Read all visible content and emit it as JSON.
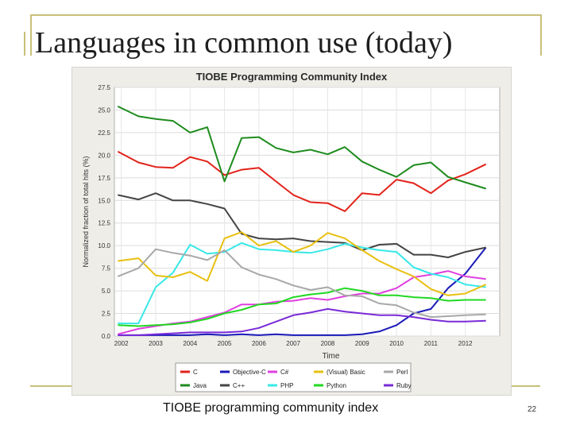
{
  "slide": {
    "title": "Languages in common use (today)",
    "caption": "TIOBE programming community index",
    "page_number": "22"
  },
  "chart_data": {
    "type": "line",
    "title": "TIOBE Programming Community Index",
    "xlabel": "Time",
    "ylabel": "Normalized fraction of total hits (%)",
    "xlim": [
      2001.8,
      2013.0
    ],
    "ylim": [
      0,
      27.5
    ],
    "yticks": [
      "0.0",
      "2.5",
      "5.0",
      "7.5",
      "10.0",
      "12.5",
      "15.0",
      "17.5",
      "20.0",
      "22.5",
      "25.0",
      "27.5"
    ],
    "xticks": [
      "2002",
      "2003",
      "2004",
      "2005",
      "2006",
      "2007",
      "2008",
      "2009",
      "2010",
      "2011",
      "2012"
    ],
    "grid": true,
    "legend_position": "bottom",
    "x": [
      2001.9,
      2002.5,
      2003.0,
      2003.5,
      2004.0,
      2004.5,
      2005.0,
      2005.5,
      2006.0,
      2006.5,
      2007.0,
      2007.5,
      2008.0,
      2008.5,
      2009.0,
      2009.5,
      2010.0,
      2010.5,
      2011.0,
      2011.5,
      2012.0,
      2012.6
    ],
    "series": [
      {
        "name": "C",
        "color": "#e2231a",
        "values": [
          20.4,
          19.2,
          18.7,
          18.6,
          19.8,
          19.3,
          17.8,
          18.4,
          18.6,
          17.1,
          15.6,
          14.8,
          14.7,
          13.8,
          15.8,
          15.6,
          17.3,
          16.9,
          15.8,
          17.2,
          17.9,
          19.0
        ]
      },
      {
        "name": "Java",
        "color": "#1e8c1e",
        "values": [
          25.4,
          24.3,
          24.0,
          23.8,
          22.5,
          23.1,
          17.1,
          21.9,
          22.0,
          20.8,
          20.3,
          20.6,
          20.1,
          20.9,
          19.3,
          18.4,
          17.6,
          18.9,
          19.2,
          17.6,
          17.0,
          16.3
        ]
      },
      {
        "name": "Objective-C",
        "color": "#1a1ab8",
        "values": [
          0.1,
          0.1,
          0.1,
          0.1,
          0.1,
          0.2,
          0.1,
          0.2,
          0.1,
          0.2,
          0.1,
          0.1,
          0.1,
          0.1,
          0.2,
          0.5,
          1.2,
          2.5,
          3.0,
          5.3,
          6.9,
          9.8
        ]
      },
      {
        "name": "C++",
        "color": "#444444",
        "values": [
          15.6,
          15.1,
          15.8,
          15.0,
          15.0,
          14.6,
          14.1,
          11.3,
          10.8,
          10.7,
          10.8,
          10.5,
          10.4,
          10.3,
          9.5,
          10.1,
          10.2,
          9.0,
          9.0,
          8.7,
          9.3,
          9.8
        ]
      },
      {
        "name": "C#",
        "color": "#e040e0",
        "values": [
          0.2,
          0.8,
          1.1,
          1.4,
          1.6,
          2.1,
          2.6,
          3.5,
          3.5,
          3.8,
          3.9,
          4.2,
          4.0,
          4.4,
          4.7,
          4.7,
          5.3,
          6.5,
          6.8,
          7.2,
          6.6,
          6.3
        ]
      },
      {
        "name": "PHP",
        "color": "#38e8e8",
        "values": [
          1.4,
          1.4,
          5.4,
          7.0,
          10.1,
          9.1,
          9.3,
          10.3,
          9.6,
          9.5,
          9.3,
          9.2,
          9.6,
          10.2,
          9.8,
          9.5,
          9.3,
          7.6,
          6.9,
          6.5,
          5.7,
          5.4
        ]
      },
      {
        "name": "(Visual) Basic",
        "color": "#e8c010",
        "values": [
          8.3,
          8.6,
          6.7,
          6.5,
          7.1,
          6.1,
          10.8,
          11.5,
          10.0,
          10.5,
          9.3,
          10.0,
          11.4,
          10.8,
          9.5,
          8.3,
          7.4,
          6.6,
          5.2,
          4.5,
          4.7,
          5.7
        ]
      },
      {
        "name": "Python",
        "color": "#22d822",
        "values": [
          1.2,
          1.1,
          1.2,
          1.3,
          1.5,
          1.9,
          2.5,
          2.9,
          3.5,
          3.6,
          4.3,
          4.6,
          4.8,
          5.3,
          5.0,
          4.5,
          4.5,
          4.3,
          4.2,
          3.9,
          4.0,
          4.0
        ]
      },
      {
        "name": "Perl",
        "color": "#a8a8a8",
        "values": [
          6.6,
          7.5,
          9.6,
          9.2,
          8.9,
          8.4,
          9.5,
          7.6,
          6.8,
          6.3,
          5.6,
          5.1,
          5.4,
          4.5,
          4.4,
          3.6,
          3.4,
          2.6,
          2.1,
          2.2,
          2.3,
          2.4
        ]
      },
      {
        "name": "Ruby",
        "color": "#7a2ad8",
        "values": [
          0.1,
          0.1,
          0.2,
          0.3,
          0.4,
          0.4,
          0.4,
          0.5,
          0.9,
          1.6,
          2.3,
          2.6,
          3.0,
          2.7,
          2.5,
          2.3,
          2.3,
          2.1,
          1.8,
          1.6,
          1.6,
          1.7
        ]
      }
    ],
    "legend_order": [
      "C",
      "Objective-C",
      "C#",
      "(Visual) Basic",
      "Perl",
      "Java",
      "C++",
      "PHP",
      "Python",
      "Ruby"
    ],
    "legend_display": [
      "C",
      "Objective-C",
      "C#",
      "(Visual) Basic",
      "Perl",
      "Java",
      "C++",
      "PHP",
      "Python",
      "Ruby"
    ]
  }
}
